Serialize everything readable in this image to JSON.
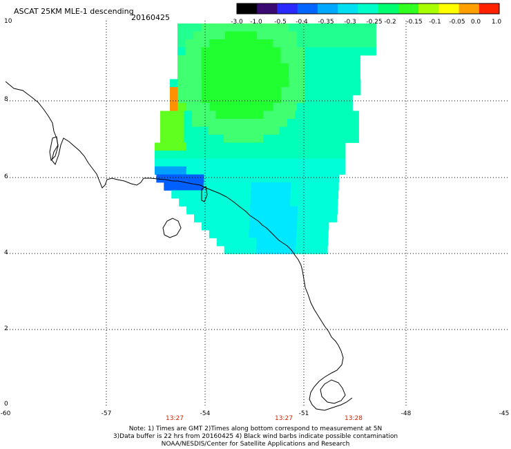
{
  "title": "ASCAT 25KM MLE-1 descending",
  "date": "20160425",
  "colorbar": {
    "labels": [
      "-3.0",
      "-1.0",
      "-0.5",
      "-0.4",
      "-0.35",
      "-0.3",
      "-0.25",
      "-0.2",
      "-0.15",
      "-0.1",
      "-0.05",
      "0.0",
      "1.0"
    ],
    "colors": [
      "#000000",
      "#3a0a72",
      "#2a2aff",
      "#0066ff",
      "#00a8ff",
      "#00e0f0",
      "#00ffc8",
      "#00ff70",
      "#30ff20",
      "#a8ff00",
      "#ffff00",
      "#ffa000",
      "#ff2200"
    ]
  },
  "axes": {
    "y_labels": [
      "10",
      "8",
      "6",
      "4",
      "2",
      "0"
    ],
    "x_labels": [
      "-60",
      "-57",
      "-54",
      "-51",
      "-48",
      "-45"
    ]
  },
  "pass_times": [
    "13:27",
    "13:27",
    "13:28"
  ],
  "notes": [
    "Note: 1) Times are GMT 2)Times along bottom correspond to measurement at 5N",
    "3)Data buffer is 22 hrs from 20160425 4) Black wind barbs indicate possible contamination",
    "NOAA/NESDIS/Center for Satellite Applications and Research"
  ]
}
